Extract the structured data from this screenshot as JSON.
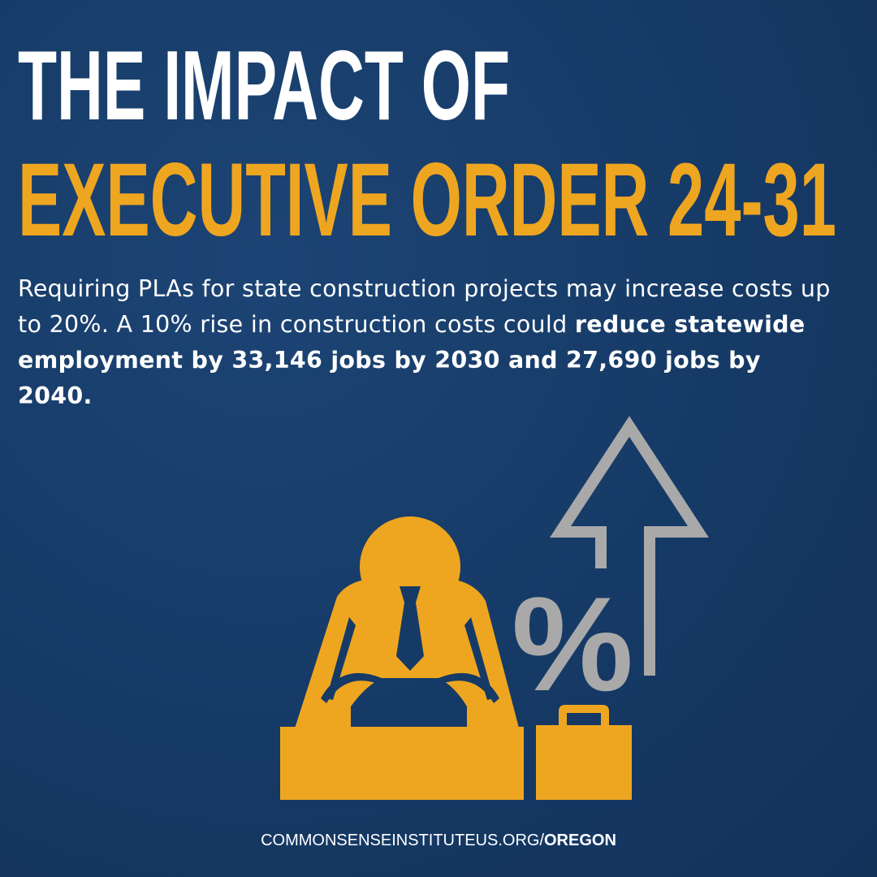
{
  "header": {
    "line1": "THE IMPACT OF",
    "line2": "EXECUTIVE ORDER 24-31"
  },
  "body": {
    "text": "Requiring PLAs for state construction projects may increase costs up to 20%. A 10% rise in construction costs could ",
    "bold": "reduce statewide employment by 33,146 jobs by 2030 and 27,690 jobs by 2040."
  },
  "icon": {
    "symbol": "%"
  },
  "footer": {
    "url": "COMMONSENSEINSTITUTEUS.ORG/",
    "bold": "OREGON"
  }
}
